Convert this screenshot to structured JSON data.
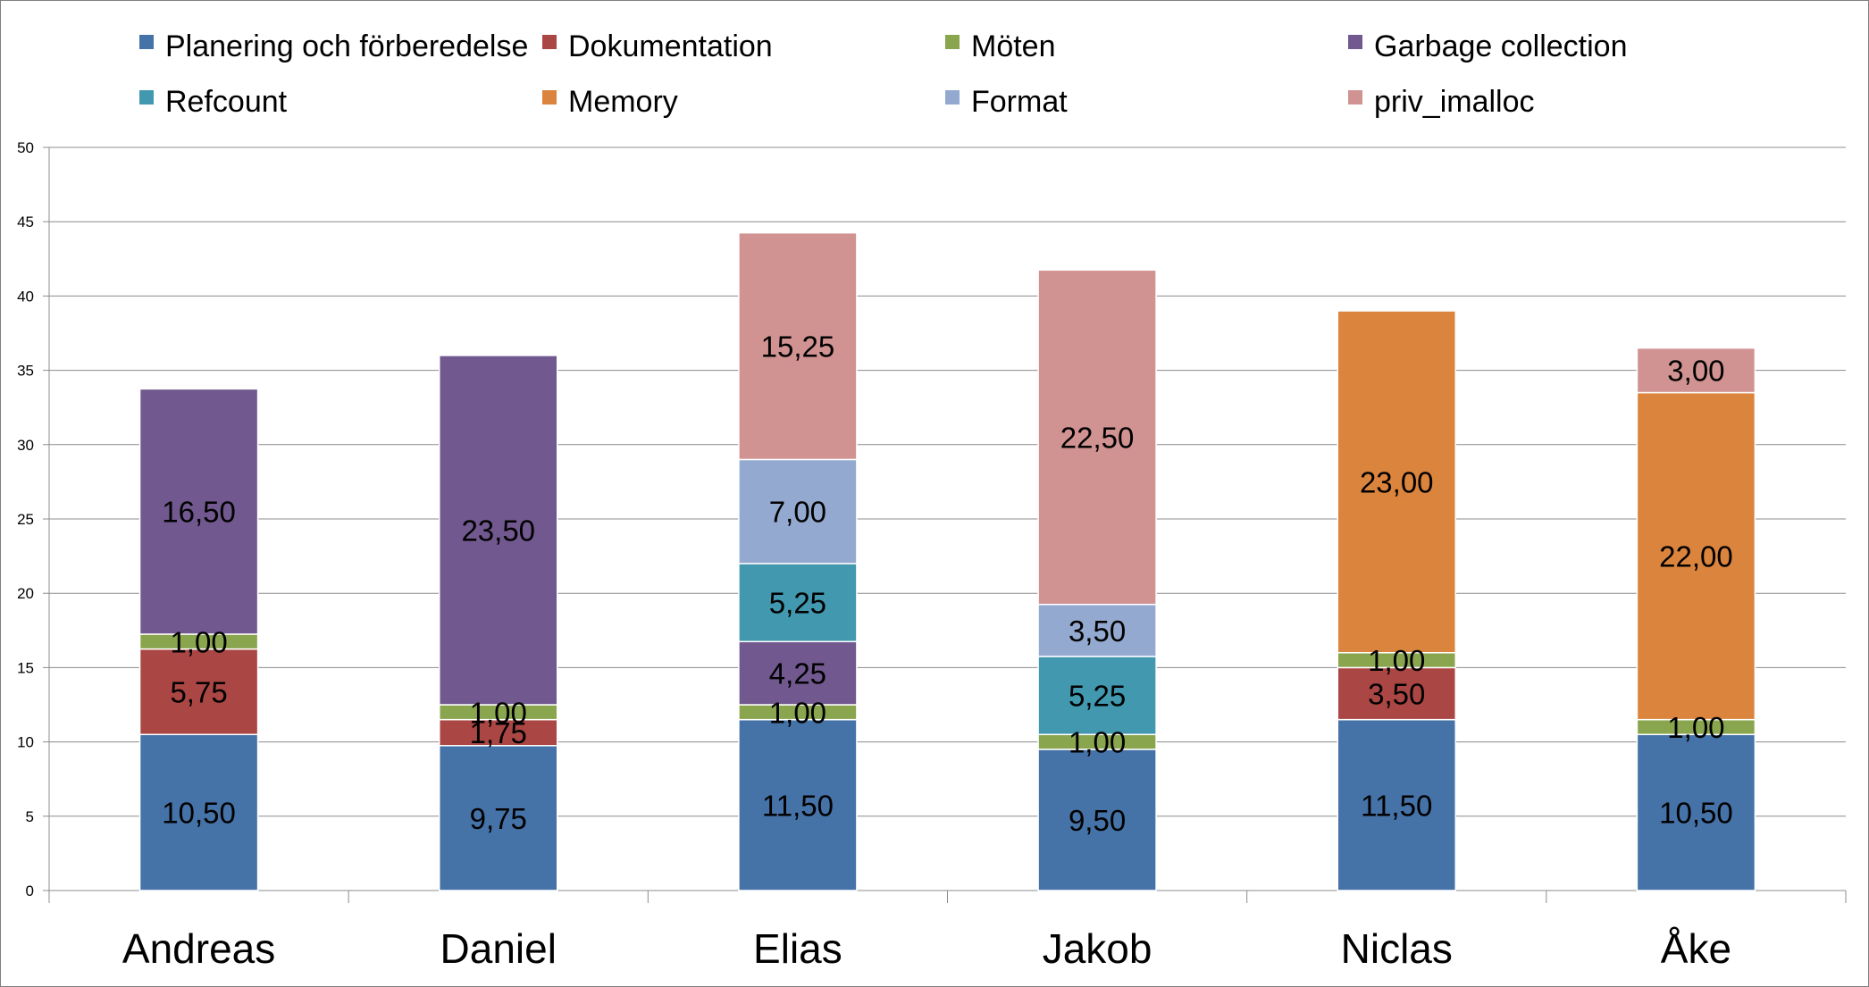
{
  "chart_data": {
    "type": "bar",
    "stacked": true,
    "title": "",
    "xlabel": "",
    "ylabel": "",
    "ylim": [
      0,
      50
    ],
    "yticks": [
      "0",
      "5",
      "10",
      "15",
      "20",
      "25",
      "30",
      "35",
      "40",
      "45",
      "50"
    ],
    "grid": true,
    "legend_position": "top",
    "categories": [
      "Andreas",
      "Daniel",
      "Elias",
      "Jakob",
      "Niclas",
      "Åke"
    ],
    "series": [
      {
        "name": "Planering och förberedelse",
        "color": "#4572a7",
        "values": [
          10.5,
          9.75,
          11.5,
          9.5,
          11.5,
          10.5
        ],
        "labels": [
          "10,50",
          "9,75",
          "11,50",
          "9,50",
          "11,50",
          "10,50"
        ]
      },
      {
        "name": "Dokumentation",
        "color": "#aa4643",
        "values": [
          5.75,
          1.75,
          0,
          0,
          3.5,
          0
        ],
        "labels": [
          "5,75",
          "1,75",
          "",
          "",
          "3,50",
          ""
        ]
      },
      {
        "name": "Möten",
        "color": "#89a54e",
        "values": [
          1,
          1,
          1,
          1,
          1,
          1
        ],
        "labels": [
          "1,00",
          "1,00",
          "1,00",
          "1,00",
          "1,00",
          "1,00"
        ]
      },
      {
        "name": "Garbage collection",
        "color": "#71588f",
        "values": [
          16.5,
          23.5,
          4.25,
          0,
          0,
          0
        ],
        "labels": [
          "16,50",
          "23,50",
          "4,25",
          "",
          "",
          ""
        ]
      },
      {
        "name": "Refcount",
        "color": "#4198af",
        "values": [
          0,
          0,
          5.25,
          5.25,
          0,
          0
        ],
        "labels": [
          "",
          "",
          "5,25",
          "5,25",
          "",
          ""
        ]
      },
      {
        "name": "Memory",
        "color": "#db843d",
        "values": [
          0,
          0,
          0,
          0,
          23,
          22
        ],
        "labels": [
          "",
          "",
          "",
          "",
          "23,00",
          "22,00"
        ]
      },
      {
        "name": "Format",
        "color": "#93a9cf",
        "values": [
          0,
          0,
          7,
          3.5,
          0,
          0
        ],
        "labels": [
          "",
          "",
          "7,00",
          "3,50",
          "",
          ""
        ]
      },
      {
        "name": "priv_imalloc",
        "color": "#d19392",
        "values": [
          0,
          0,
          15.25,
          22.5,
          0,
          3
        ],
        "labels": [
          "",
          "",
          "15,25",
          "22,50",
          "",
          "3,00"
        ]
      }
    ]
  }
}
